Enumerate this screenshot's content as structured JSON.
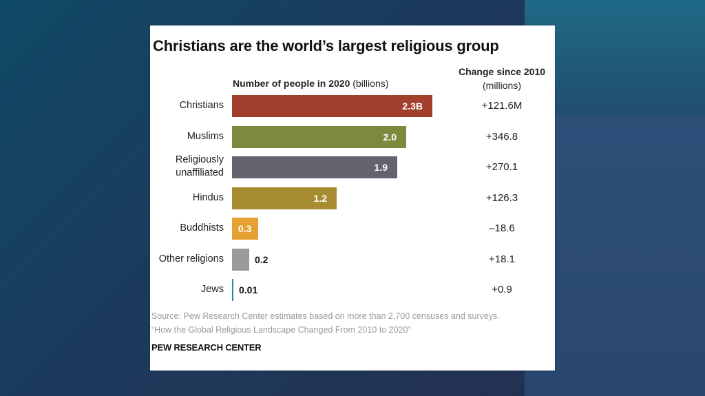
{
  "chart_data": {
    "type": "bar",
    "orientation": "horizontal",
    "title": "Christians are the world’s largest religious group",
    "axis_header": {
      "bold": "Number of people in 2020",
      "unit": "(billions)"
    },
    "change_header": {
      "line1": "Change since 2010",
      "line2": "(millions)"
    },
    "categories": [
      "Christians",
      "Muslims",
      "Religiously unaffiliated",
      "Hindus",
      "Buddhists",
      "Other religions",
      "Jews"
    ],
    "values": [
      2.3,
      2.0,
      1.9,
      1.2,
      0.3,
      0.2,
      0.01
    ],
    "value_labels": [
      "2.3B",
      "2.0",
      "1.9",
      "1.2",
      "0.3",
      "0.2",
      "0.01"
    ],
    "changes": [
      "+121.6M",
      "+346.8",
      "+270.1",
      "+126.3",
      "–18.6",
      "+18.1",
      "+0.9"
    ],
    "colors": [
      "#a13f2c",
      "#7c8a3e",
      "#65626f",
      "#a88c32",
      "#e5a232",
      "#9a9a9a",
      "#2a8aa0"
    ]
  },
  "source_line1": "Source: Pew Research Center estimates based on more than 2,700 censuses and surveys.",
  "source_line2": "“How the Global Religious Landscape Changed From 2010 to 2020”",
  "brand": "PEW RESEARCH CENTER"
}
